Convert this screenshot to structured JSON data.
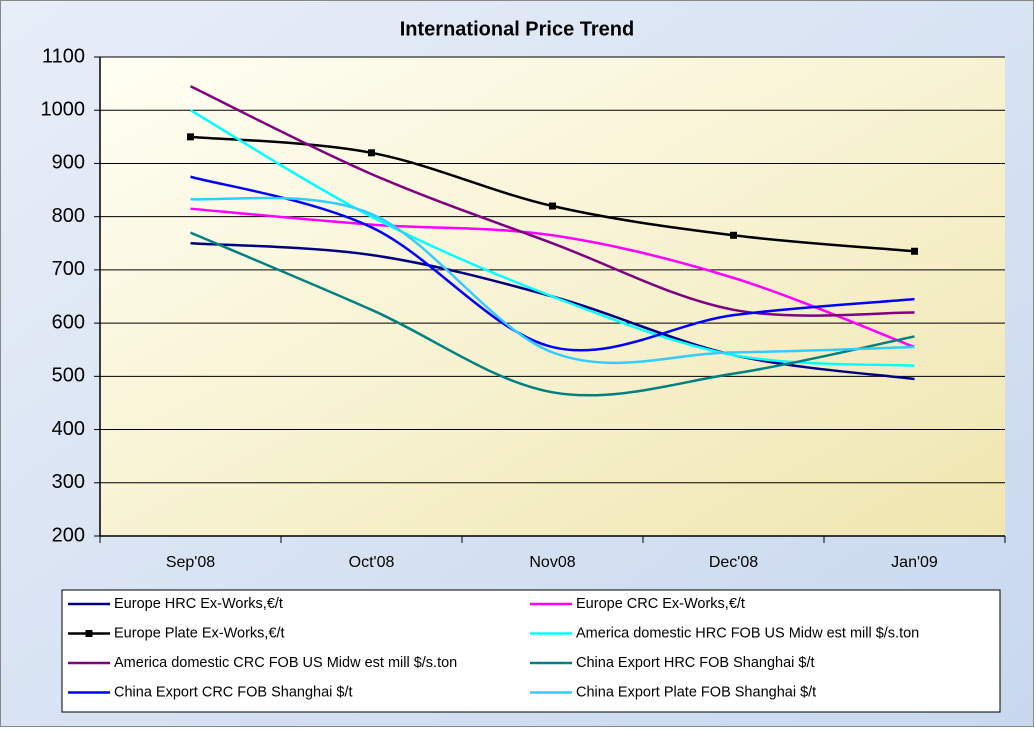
{
  "chart_data": {
    "type": "line",
    "title": "International Price Trend",
    "categories": [
      "Sep'08",
      "Oct'08",
      "Nov08",
      "Dec'08",
      "Jan'09"
    ],
    "series": [
      {
        "name": "Europe HRC Ex-Works,€/t",
        "color": "#000080",
        "values": [
          750,
          728,
          650,
          540,
          495
        ]
      },
      {
        "name": "Europe CRC Ex-Works,€/t",
        "color": "#ff00ff",
        "values": [
          815,
          785,
          765,
          685,
          555
        ]
      },
      {
        "name": "Europe Plate Ex-Works,€/t",
        "color": "#000000",
        "marker": "square",
        "values": [
          950,
          920,
          820,
          765,
          735
        ]
      },
      {
        "name": "America domestic HRC FOB US Midw est mill $/s.ton",
        "color": "#00ffff",
        "values": [
          1000,
          800,
          650,
          540,
          520
        ]
      },
      {
        "name": "America domestic CRC FOB US Midw est mill $/s.ton",
        "color": "#800080",
        "values": [
          1045,
          880,
          750,
          625,
          620
        ]
      },
      {
        "name": "China Export HRC FOB Shanghai $/t",
        "color": "#008080",
        "values": [
          770,
          625,
          470,
          505,
          575
        ]
      },
      {
        "name": "China Export CRC FOB Shanghai $/t",
        "color": "#0000ff",
        "values": [
          875,
          780,
          555,
          615,
          645
        ]
      },
      {
        "name": "China Export Plate FOB Shanghai $/t",
        "color": "#33ccff",
        "values": [
          833,
          805,
          545,
          545,
          555
        ]
      }
    ],
    "ylim": [
      200,
      1100
    ],
    "yticks": [
      200,
      300,
      400,
      500,
      600,
      700,
      800,
      900,
      1000,
      1100
    ],
    "grid": true
  }
}
